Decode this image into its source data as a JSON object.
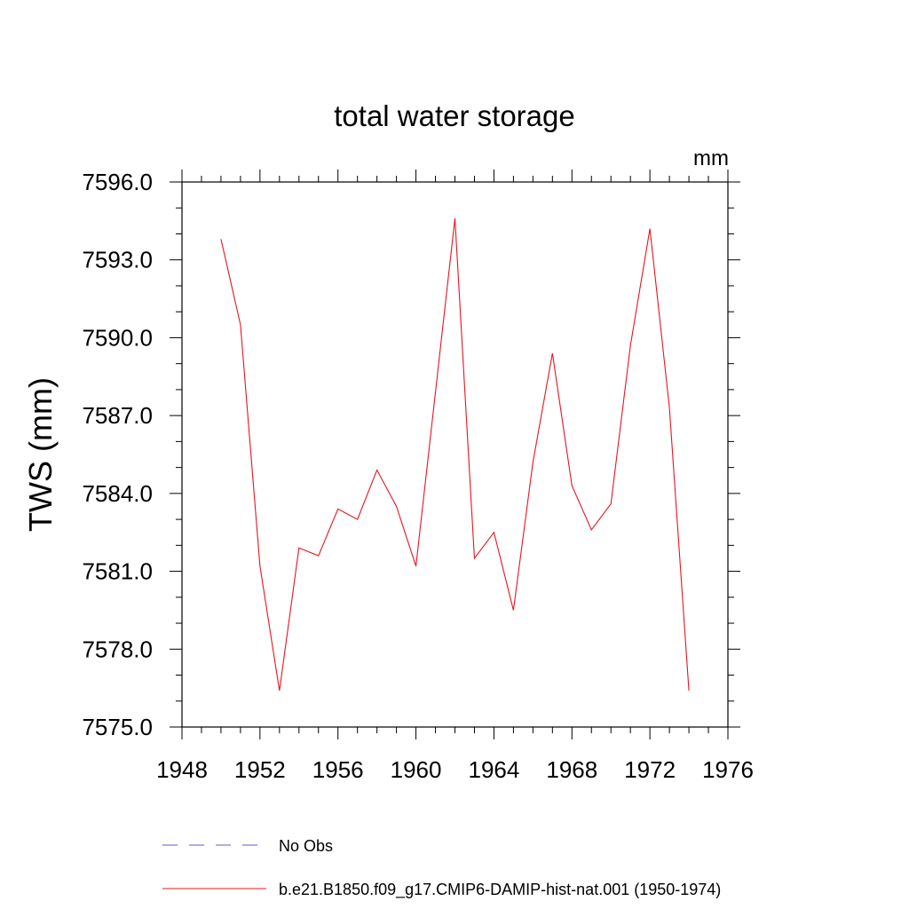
{
  "chart_data": {
    "type": "line",
    "title": "total water storage",
    "units_label": "mm",
    "ylabel": "TWS  (mm)",
    "xlabel": "",
    "xlim": [
      1948,
      1976
    ],
    "ylim": [
      7575.0,
      7596.0
    ],
    "x_ticks": [
      "1948",
      "1952",
      "1956",
      "1960",
      "1964",
      "1968",
      "1972",
      "1976"
    ],
    "y_ticks": [
      "7575.0",
      "7578.0",
      "7581.0",
      "7584.0",
      "7587.0",
      "7590.0",
      "7593.0",
      "7596.0"
    ],
    "x_minor_step": 1,
    "y_minor_step": 1,
    "grid": false,
    "legend_position": "bottom",
    "series": [
      {
        "name": "No Obs",
        "color": "#6a5acd",
        "style": "dashed",
        "x": [],
        "values": []
      },
      {
        "name": "b.e21.B1850.f09_g17.CMIP6-DAMIP-hist-nat.001 (1950-1974)",
        "color": "#e8141e",
        "style": "solid",
        "x": [
          1950,
          1951,
          1952,
          1953,
          1954,
          1955,
          1956,
          1957,
          1958,
          1959,
          1960,
          1961,
          1962,
          1963,
          1964,
          1965,
          1966,
          1967,
          1968,
          1969,
          1970,
          1971,
          1972,
          1973,
          1974
        ],
        "values": [
          7593.8,
          7590.5,
          7581.2,
          7576.4,
          7581.9,
          7581.6,
          7583.4,
          7583.0,
          7584.9,
          7583.5,
          7581.2,
          7587.9,
          7594.6,
          7581.5,
          7582.5,
          7579.5,
          7585.2,
          7589.4,
          7584.3,
          7582.6,
          7583.6,
          7589.7,
          7594.2,
          7587.3,
          7576.4
        ]
      }
    ]
  }
}
